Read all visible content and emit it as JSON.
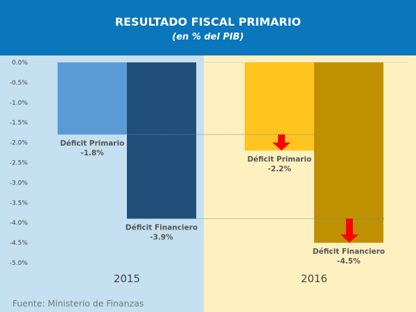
{
  "chart_data": {
    "type": "bar",
    "title": "RESULTADO FISCAL PRIMARIO",
    "subtitle": "(en % del PIB)",
    "categories": [
      "2015",
      "2016"
    ],
    "series": [
      {
        "name": "Déficit Primario",
        "values": [
          -1.8,
          -2.2
        ],
        "colors": [
          "#5b9bd5",
          "#ffc420"
        ]
      },
      {
        "name": "Déficit Financiero",
        "values": [
          -3.9,
          -4.5
        ],
        "colors": [
          "#1f4e79",
          "#bf9000"
        ]
      }
    ],
    "data_labels": [
      [
        "-1.8%",
        "-3.9%"
      ],
      [
        "-2.2%",
        "-4.5%"
      ]
    ],
    "yticks": [
      "0.0%",
      "-0.5%",
      "-1.0%",
      "-1.5%",
      "-2.0%",
      "-2.5%",
      "-3.0%",
      "-3.5%",
      "-4.0%",
      "-4.5%",
      "-5.0%"
    ],
    "ylim": [
      -5,
      0
    ],
    "reference_lines": [
      -1.8,
      -3.9
    ],
    "arrow_color": "#ff0000",
    "panel_colors": [
      "#c5e0f0",
      "#fff0c0"
    ],
    "header_color": "#0a76bb",
    "source": "Fuente: Ministerio de Finanzas"
  }
}
